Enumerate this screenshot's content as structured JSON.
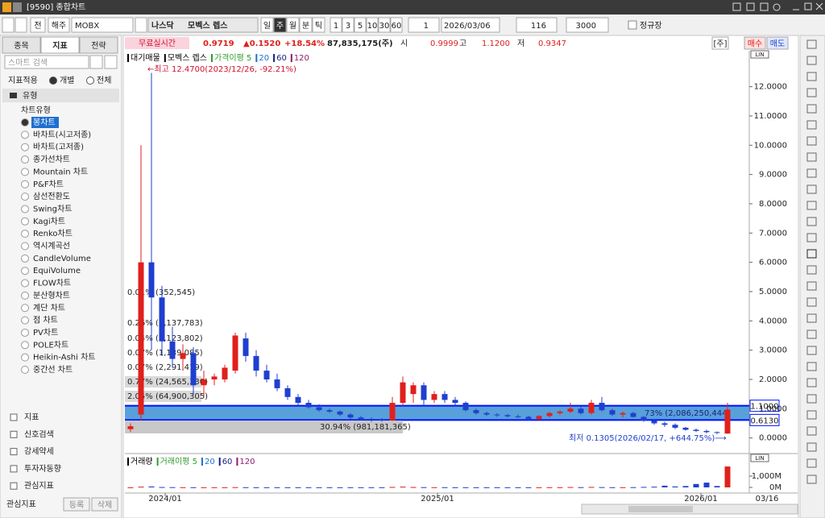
{
  "window": {
    "title": "[9590] 종합차트"
  },
  "toolbar": {
    "buttons": [
      "전",
      "해주"
    ],
    "code": "MOBX",
    "market": "나스닥",
    "name": "모벡스 렙스",
    "periods": [
      "일",
      "주",
      "월",
      "분",
      "틱"
    ],
    "intervals": [
      1,
      3,
      5,
      10,
      30,
      60
    ],
    "count": 1,
    "date": "2026/03/06",
    "view": 116,
    "total": 3000,
    "session": "정규장"
  },
  "sidebar": {
    "tabs": [
      "종목",
      "지표",
      "전략"
    ],
    "search": "스마트 검색",
    "apply": {
      "label": "지표적용",
      "options": [
        "개별",
        "전체"
      ]
    },
    "group": "유형",
    "tree": "차트유형",
    "items": [
      "봉차트",
      "바차트(시고저종)",
      "바차트(고저종)",
      "종가선차트",
      "Mountain 차트",
      "P&F차트",
      "삼선전환도",
      "Swing차트",
      "Kagi차트",
      "Renko차트",
      "역시계곡선",
      "CandleVolume",
      "EquiVolume",
      "FLOW차트",
      "분산형차트",
      "계단 차트",
      "점 차트",
      "PV차트",
      "POLE차트",
      "Heikin-Ashi 차트",
      "중간선 차트"
    ],
    "sections": [
      "지표",
      "신호검색",
      "강세약세",
      "투자자동향",
      "관심지표"
    ],
    "footer": {
      "label": "관심지표",
      "buttons": [
        "등록",
        "삭제"
      ]
    }
  },
  "quote": {
    "badge": "무료실시간",
    "price": "0.9719",
    "change": "▲0.1520",
    "rate": "+18.54%",
    "volume": "87,835,175(주)",
    "open_label": "시",
    "open": "0.9999",
    "high_label": "고",
    "high": "1.1200",
    "low_label": "저",
    "low": "0.9347",
    "buttons": [
      "[주]",
      "매수",
      "매도"
    ]
  },
  "chart_data": {
    "type": "candlestick",
    "scale_badge": "LIN",
    "legend": [
      {
        "name": "대기매물",
        "color": "#000000"
      },
      {
        "name": "모벡스 렙스",
        "color": "#000000"
      },
      {
        "name": "가격이평 5",
        "color": "#2e9e2e"
      },
      {
        "name": "20",
        "color": "#1e6fd0"
      },
      {
        "name": "60",
        "color": "#1a237e"
      },
      {
        "name": "120",
        "color": "#8e1a6e"
      }
    ],
    "volume_legend": [
      {
        "name": "거래량",
        "color": "#000000"
      },
      {
        "name": "거래이평 5",
        "color": "#2e9e2e"
      },
      {
        "name": "20",
        "color": "#1e6fd0"
      },
      {
        "name": "60",
        "color": "#1a237e"
      },
      {
        "name": "120",
        "color": "#8e1a6e"
      }
    ],
    "high_note": "←최고 12.4700(2023/12/26, -92.21%)",
    "low_note": "최저 0.1305(2026/02/17, +644.75%)⟶",
    "profile": [
      "0.01% (352,545)",
      "0.26% (3,137,783)",
      "0.04% (1,123,802)",
      "0.07% (1,139,085)",
      "0.07% (2,291,419)",
      "0.77% (24,565,330)",
      "2.05% (64,900,305)",
      "30.94% (981,181,365)"
    ],
    "zone_note": "73% (2,086,250,444)",
    "zone": {
      "values": [
        1.1,
        0.613
      ],
      "value_labels": [
        "1.1000",
        "0.6130"
      ],
      "color": "#3b8fd4"
    },
    "ylim": [
      -0.45,
      13.2
    ],
    "yticks": [
      {
        "value": 0,
        "label": "0.0000"
      },
      {
        "value": 1,
        "label": "1.0000"
      },
      {
        "value": 2,
        "label": "2.0000"
      },
      {
        "value": 3,
        "label": "3.0000"
      },
      {
        "value": 4,
        "label": "4.0000"
      },
      {
        "value": 5,
        "label": "5.0000"
      },
      {
        "value": 6,
        "label": "6.0000"
      },
      {
        "value": 7,
        "label": "7.0000"
      },
      {
        "value": 8,
        "label": "8.0000"
      },
      {
        "value": 9,
        "label": "9.0000"
      },
      {
        "value": 10,
        "label": "10.0000"
      },
      {
        "value": 11,
        "label": "11.0000"
      },
      {
        "value": 12,
        "label": "12.0000"
      }
    ],
    "volume_ylim": [
      0,
      2140
    ],
    "volume_yticks": [
      {
        "value": 1000,
        "label": "1,000M"
      },
      {
        "value": 0,
        "label": "0M"
      }
    ],
    "x_labels": [
      "2024/01",
      "2025/01",
      "2026/01"
    ],
    "last_date": "03/16",
    "up_color": "#e0201c",
    "down_color": "#1f3fcf",
    "candles": [
      [
        0.3,
        0.5,
        0.2,
        0.4
      ],
      [
        0.8,
        10.0,
        0.6,
        6.0
      ],
      [
        6.0,
        12.47,
        3.0,
        4.8
      ],
      [
        4.8,
        5.2,
        2.8,
        3.3
      ],
      [
        3.3,
        3.8,
        2.4,
        2.7
      ],
      [
        2.7,
        3.2,
        2.3,
        2.9
      ],
      [
        2.9,
        3.1,
        1.5,
        1.8
      ],
      [
        1.8,
        2.3,
        1.4,
        2.0
      ],
      [
        2.0,
        2.2,
        1.8,
        2.1
      ],
      [
        2.0,
        2.5,
        1.9,
        2.4
      ],
      [
        2.3,
        3.6,
        2.2,
        3.5
      ],
      [
        3.4,
        3.6,
        2.6,
        2.8
      ],
      [
        2.8,
        3.0,
        2.1,
        2.3
      ],
      [
        2.3,
        2.5,
        1.9,
        2.0
      ],
      [
        2.0,
        2.2,
        1.6,
        1.7
      ],
      [
        1.7,
        1.8,
        1.3,
        1.4
      ],
      [
        1.4,
        1.5,
        1.1,
        1.2
      ],
      [
        1.2,
        1.3,
        1.0,
        1.05
      ],
      [
        1.05,
        1.15,
        0.9,
        0.95
      ],
      [
        0.95,
        1.0,
        0.85,
        0.9
      ],
      [
        0.9,
        0.95,
        0.75,
        0.8
      ],
      [
        0.8,
        0.85,
        0.65,
        0.7
      ],
      [
        0.7,
        0.75,
        0.6,
        0.65
      ],
      [
        0.65,
        0.7,
        0.55,
        0.62
      ],
      [
        0.62,
        0.68,
        0.56,
        0.6
      ],
      [
        0.6,
        1.4,
        0.58,
        1.2
      ],
      [
        1.2,
        2.1,
        1.1,
        1.9
      ],
      [
        1.5,
        1.9,
        1.2,
        1.8
      ],
      [
        1.8,
        1.9,
        1.1,
        1.3
      ],
      [
        1.3,
        1.6,
        1.2,
        1.5
      ],
      [
        1.5,
        1.6,
        1.2,
        1.3
      ],
      [
        1.3,
        1.4,
        1.1,
        1.2
      ],
      [
        1.2,
        1.25,
        0.9,
        0.95
      ],
      [
        0.95,
        1.0,
        0.8,
        0.85
      ],
      [
        0.85,
        0.9,
        0.75,
        0.8
      ],
      [
        0.8,
        0.85,
        0.72,
        0.78
      ],
      [
        0.78,
        0.82,
        0.7,
        0.74
      ],
      [
        0.74,
        0.8,
        0.68,
        0.72
      ],
      [
        0.72,
        0.76,
        0.6,
        0.65
      ],
      [
        0.65,
        0.78,
        0.62,
        0.75
      ],
      [
        0.75,
        0.9,
        0.7,
        0.85
      ],
      [
        0.85,
        0.95,
        0.78,
        0.9
      ],
      [
        0.9,
        1.2,
        0.85,
        1.0
      ],
      [
        1.0,
        1.1,
        0.8,
        0.85
      ],
      [
        0.85,
        1.3,
        0.8,
        1.2
      ],
      [
        1.2,
        1.4,
        0.9,
        0.95
      ],
      [
        0.95,
        1.0,
        0.75,
        0.8
      ],
      [
        0.8,
        0.9,
        0.7,
        0.85
      ],
      [
        0.85,
        0.9,
        0.7,
        0.72
      ],
      [
        0.72,
        0.75,
        0.55,
        0.6
      ],
      [
        0.6,
        0.65,
        0.45,
        0.5
      ],
      [
        0.5,
        0.55,
        0.38,
        0.45
      ],
      [
        0.45,
        0.5,
        0.3,
        0.35
      ],
      [
        0.35,
        0.38,
        0.25,
        0.28
      ],
      [
        0.28,
        0.32,
        0.2,
        0.24
      ],
      [
        0.24,
        0.28,
        0.16,
        0.2
      ],
      [
        0.2,
        0.22,
        0.13,
        0.18
      ],
      [
        0.15,
        1.2,
        0.14,
        0.97
      ]
    ],
    "volume": [
      5,
      60,
      80,
      30,
      20,
      15,
      15,
      10,
      10,
      10,
      20,
      15,
      10,
      10,
      10,
      10,
      10,
      10,
      10,
      10,
      10,
      10,
      10,
      10,
      10,
      40,
      60,
      30,
      20,
      15,
      15,
      10,
      10,
      10,
      10,
      10,
      10,
      10,
      10,
      10,
      15,
      15,
      30,
      20,
      40,
      25,
      15,
      15,
      20,
      40,
      60,
      150,
      80,
      120,
      300,
      420,
      120,
      1850
    ]
  }
}
